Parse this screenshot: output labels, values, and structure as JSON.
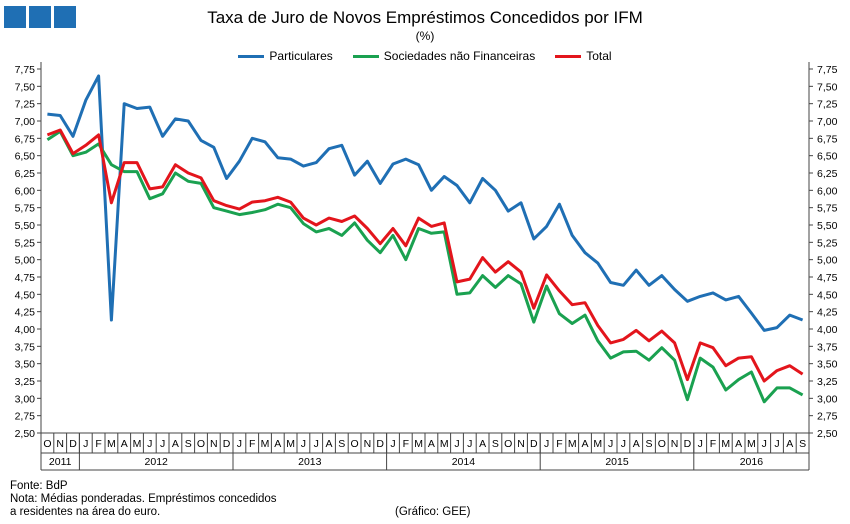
{
  "header": {
    "title": "Taxa de Juro de Novos Empréstimos Concedidos por IFM",
    "subtitle": "(%)"
  },
  "logo": {
    "name": "gee-logo-squares",
    "color": "#1f6fb4"
  },
  "footer": {
    "source": "Fonte: BdP",
    "note_line1": "Nota: Médias ponderadas. Empréstimos concedidos",
    "note_line2": "a residentes na área do euro.",
    "credit": "(Gráfico: GEE)"
  },
  "chart_data": {
    "type": "line",
    "title": "Taxa de Juro de Novos Empréstimos Concedidos por IFM",
    "ylabel": "(%)",
    "ylim": [
      2.5,
      7.75
    ],
    "yticks": [
      "2,50",
      "2,75",
      "3,00",
      "3,25",
      "3,50",
      "3,75",
      "4,00",
      "4,25",
      "4,50",
      "4,75",
      "5,00",
      "5,25",
      "5,50",
      "5,75",
      "6,00",
      "6,25",
      "6,50",
      "6,75",
      "7,00",
      "7,25",
      "7,50",
      "7,75"
    ],
    "grid": false,
    "legend": "top",
    "months": [
      "O",
      "N",
      "D",
      "J",
      "F",
      "M",
      "A",
      "M",
      "J",
      "J",
      "A",
      "S",
      "O",
      "N",
      "D",
      "J",
      "F",
      "M",
      "A",
      "M",
      "J",
      "J",
      "A",
      "S",
      "O",
      "N",
      "D",
      "J",
      "F",
      "M",
      "A",
      "M",
      "J",
      "J",
      "A",
      "S",
      "O",
      "N",
      "D",
      "J",
      "F",
      "M",
      "A",
      "M",
      "J",
      "J",
      "A",
      "S",
      "O",
      "N",
      "D",
      "J",
      "F",
      "M",
      "A",
      "M",
      "J",
      "J",
      "A",
      "S"
    ],
    "years": [
      {
        "label": "2011",
        "months": 3
      },
      {
        "label": "2012",
        "months": 12
      },
      {
        "label": "2013",
        "months": 12
      },
      {
        "label": "2014",
        "months": 12
      },
      {
        "label": "2015",
        "months": 12
      },
      {
        "label": "2016",
        "months": 9
      }
    ],
    "series": [
      {
        "name": "Particulares",
        "color": "#1f6fb4",
        "values": [
          7.1,
          7.08,
          6.78,
          7.3,
          7.65,
          4.13,
          7.25,
          7.18,
          7.2,
          6.78,
          7.03,
          7.0,
          6.72,
          6.62,
          6.17,
          6.42,
          6.75,
          6.7,
          6.47,
          6.45,
          6.35,
          6.4,
          6.6,
          6.65,
          6.22,
          6.42,
          6.1,
          6.38,
          6.45,
          6.37,
          6.0,
          6.2,
          6.07,
          5.82,
          6.17,
          6.0,
          5.7,
          5.82,
          5.3,
          5.48,
          5.8,
          5.35,
          5.1,
          4.95,
          4.67,
          4.63,
          4.85,
          4.63,
          4.77,
          4.57,
          4.4,
          4.47,
          4.52,
          4.42,
          4.47,
          4.23,
          3.98,
          4.02,
          4.2,
          4.13
        ]
      },
      {
        "name": "Sociedades não Financeiras",
        "color": "#1aa150",
        "values": [
          6.73,
          6.85,
          6.5,
          6.55,
          6.67,
          6.37,
          6.27,
          6.27,
          5.88,
          5.95,
          6.25,
          6.13,
          6.1,
          5.75,
          5.7,
          5.65,
          5.68,
          5.72,
          5.8,
          5.75,
          5.52,
          5.4,
          5.45,
          5.35,
          5.53,
          5.28,
          5.1,
          5.35,
          5.0,
          5.45,
          5.38,
          5.4,
          4.5,
          4.52,
          4.77,
          4.6,
          4.77,
          4.65,
          4.1,
          4.62,
          4.22,
          4.08,
          4.2,
          3.83,
          3.58,
          3.67,
          3.68,
          3.55,
          3.73,
          3.55,
          2.98,
          3.58,
          3.45,
          3.12,
          3.27,
          3.38,
          2.95,
          3.15,
          3.15,
          3.05
        ]
      },
      {
        "name": "Total",
        "color": "#e3151c",
        "values": [
          6.8,
          6.87,
          6.53,
          6.65,
          6.8,
          5.82,
          6.4,
          6.4,
          6.02,
          6.05,
          6.37,
          6.25,
          6.18,
          5.85,
          5.78,
          5.73,
          5.83,
          5.85,
          5.9,
          5.83,
          5.6,
          5.5,
          5.6,
          5.55,
          5.63,
          5.45,
          5.23,
          5.45,
          5.2,
          5.6,
          5.48,
          5.53,
          4.68,
          4.72,
          5.03,
          4.82,
          4.97,
          4.82,
          4.3,
          4.78,
          4.55,
          4.35,
          4.38,
          4.05,
          3.8,
          3.85,
          3.98,
          3.83,
          3.97,
          3.8,
          3.27,
          3.8,
          3.73,
          3.47,
          3.58,
          3.6,
          3.25,
          3.4,
          3.47,
          3.35
        ]
      }
    ]
  }
}
